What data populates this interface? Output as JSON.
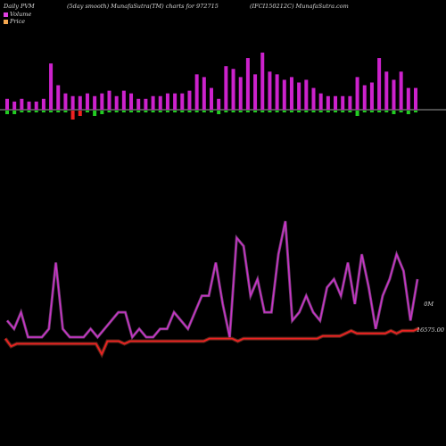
{
  "header": {
    "left": "Daily PVM",
    "center": "(5day smooth) MunafaSutra(TM) charts for 972715",
    "right": "(IFCI150212C) MunafaSutra.com"
  },
  "legend": [
    {
      "label": "Volume",
      "color": "#e040e0"
    },
    {
      "label": "Price",
      "color": "#f5a850"
    }
  ],
  "colors": {
    "volume_up": "#cc22cc",
    "volume_down_red": "#ee2222",
    "volume_down_green": "#22cc22",
    "volume_line": "#cc33cc",
    "price_line": "#ee2222",
    "baseline": "#d0d0d0"
  },
  "right_labels": {
    "volume": "0M",
    "price": "16575.00"
  },
  "chart_data": {
    "type": "bar",
    "title": "",
    "series": [
      {
        "kind": "volume_bars_up",
        "values": [
          4,
          3,
          4,
          3,
          3,
          4,
          17,
          9,
          6,
          5,
          5,
          6,
          5,
          6,
          7,
          5,
          7,
          6,
          4,
          4,
          5,
          5,
          6,
          6,
          6,
          7,
          13,
          12,
          8,
          4,
          16,
          15,
          12,
          19,
          13,
          21,
          14,
          13,
          11,
          12,
          10,
          11,
          8,
          6,
          5,
          5,
          5,
          5,
          12,
          9,
          10,
          19,
          14,
          11,
          14,
          8,
          8
        ]
      },
      {
        "kind": "volume_bars_down",
        "values": [
          -2,
          -2,
          -1,
          -1,
          -1,
          -1,
          -1,
          -1,
          -1,
          -5,
          -3,
          -1,
          -3,
          -2,
          -1,
          -1,
          -1,
          -1,
          -1,
          -1,
          -1,
          -1,
          -1,
          -1,
          -1,
          -1,
          -1,
          -1,
          -1,
          -2,
          -1,
          -1,
          -1,
          -1,
          -1,
          -1,
          -1,
          -1,
          -1,
          -1,
          -1,
          -1,
          -1,
          -1,
          -1,
          -1,
          -1,
          -1,
          -3,
          -1,
          -1,
          -1,
          -1,
          -2,
          -1,
          -2,
          -1
        ],
        "colors": [
          "g",
          "g",
          "g",
          "g",
          "g",
          "g",
          "g",
          "g",
          "g",
          "r",
          "r",
          "g",
          "g",
          "g",
          "g",
          "g",
          "g",
          "g",
          "g",
          "g",
          "g",
          "g",
          "g",
          "g",
          "g",
          "g",
          "g",
          "g",
          "g",
          "g",
          "g",
          "g",
          "g",
          "g",
          "g",
          "g",
          "g",
          "g",
          "g",
          "g",
          "g",
          "g",
          "g",
          "g",
          "g",
          "g",
          "g",
          "g",
          "g",
          "g",
          "g",
          "g",
          "g",
          "g",
          "g",
          "g",
          "g"
        ]
      },
      {
        "kind": "volume_line",
        "values": [
          2,
          1,
          3,
          0,
          0,
          0,
          1,
          9,
          1,
          0,
          0,
          0,
          1,
          0,
          1,
          2,
          3,
          3,
          0,
          1,
          0,
          0,
          1,
          1,
          3,
          2,
          1,
          3,
          5,
          5,
          9,
          4,
          0,
          12,
          11,
          5,
          7,
          3,
          3,
          10,
          14,
          2,
          3,
          5,
          3,
          2,
          6,
          7,
          5,
          9,
          4,
          10,
          6,
          1,
          5,
          7,
          10,
          8,
          2,
          7
        ],
        "ylim": [
          0,
          14
        ]
      },
      {
        "kind": "price_line",
        "values": [
          3,
          0,
          1,
          1,
          1,
          1,
          1,
          1,
          1,
          1,
          1,
          1,
          1,
          1,
          1,
          1,
          1,
          -3,
          2,
          2,
          2,
          1,
          2,
          2,
          2,
          2,
          2,
          2,
          2,
          2,
          2,
          2,
          2,
          2,
          2,
          2,
          3,
          3,
          3,
          3,
          3,
          2,
          3,
          3,
          3,
          3,
          3,
          3,
          3,
          3,
          3,
          3,
          3,
          3,
          3,
          3,
          4,
          4,
          4,
          4,
          5,
          6,
          5,
          5,
          5,
          5,
          5,
          5,
          6,
          5,
          6,
          6,
          6,
          7
        ],
        "ylim": [
          -4,
          8
        ]
      }
    ],
    "xlabel": "",
    "ylabel": ""
  }
}
